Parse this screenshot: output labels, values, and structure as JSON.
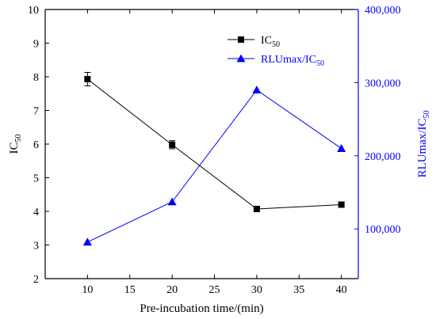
{
  "chart_data": {
    "type": "line",
    "x": [
      10,
      20,
      30,
      40
    ],
    "xlim": [
      5,
      42
    ],
    "xticks": [
      10,
      15,
      20,
      25,
      30,
      35,
      40
    ],
    "xlabel": "Pre-incubation time/(min)",
    "y_left": {
      "label_main": "IC",
      "label_sub": "50",
      "lim": [
        2,
        10
      ],
      "ticks": [
        2,
        3,
        4,
        5,
        6,
        7,
        8,
        9,
        10
      ],
      "color": "#000000"
    },
    "y_right": {
      "label_main": "RLUmax/IC",
      "label_sub": "50",
      "lim": [
        32000,
        400000
      ],
      "ticks": [
        100000,
        200000,
        300000,
        400000
      ],
      "tick_labels": [
        "100,000",
        "200,000",
        "300,000",
        "400,000"
      ],
      "color": "#0000ff"
    },
    "series": [
      {
        "name_main": "IC",
        "name_sub": "50",
        "axis": "left",
        "marker": "square",
        "color": "#000000",
        "values": [
          7.93,
          5.98,
          4.07,
          4.2
        ],
        "errors": [
          0.2,
          0.12,
          0.07,
          0.08
        ]
      },
      {
        "name_main": "RLUmax/IC",
        "name_sub": "50",
        "axis": "right",
        "marker": "triangle",
        "color": "#0000ff",
        "values": [
          82000,
          137000,
          290000,
          210000
        ]
      }
    ],
    "grid": false,
    "legend_position": "top-center"
  }
}
